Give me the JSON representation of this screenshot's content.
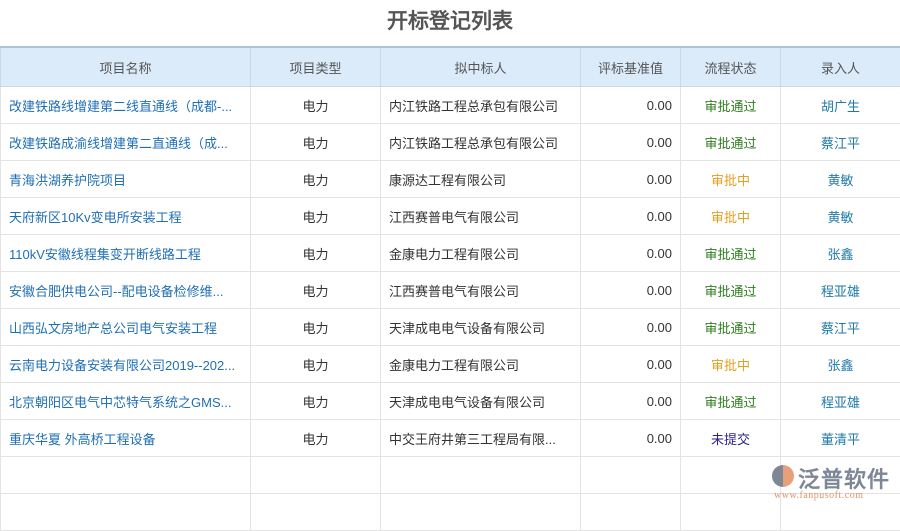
{
  "title": "开标登记列表",
  "columns": [
    "项目名称",
    "项目类型",
    "拟中标人",
    "评标基准值",
    "流程状态",
    "录入人"
  ],
  "rows": [
    {
      "name": "改建铁路线增建第二线直通线（成都-...",
      "type": "电力",
      "bidder": "内江铁路工程总承包有限公司",
      "value": "0.00",
      "status": "审批通过",
      "status_kind": "ok",
      "user": "胡广生"
    },
    {
      "name": "改建铁路成渝线增建第二直通线（成...",
      "type": "电力",
      "bidder": "内江铁路工程总承包有限公司",
      "value": "0.00",
      "status": "审批通过",
      "status_kind": "ok",
      "user": "蔡江平"
    },
    {
      "name": "青海洪湖养护院项目",
      "type": "电力",
      "bidder": "康源达工程有限公司",
      "value": "0.00",
      "status": "审批中",
      "status_kind": "wait",
      "user": "黄敏"
    },
    {
      "name": "天府新区10Kv变电所安装工程",
      "type": "电力",
      "bidder": "江西赛普电气有限公司",
      "value": "0.00",
      "status": "审批中",
      "status_kind": "wait",
      "user": "黄敏"
    },
    {
      "name": "110kV安徽线程集变开断线路工程",
      "type": "电力",
      "bidder": "金康电力工程有限公司",
      "value": "0.00",
      "status": "审批通过",
      "status_kind": "ok",
      "user": "张鑫"
    },
    {
      "name": "安徽合肥供电公司--配电设备检修维...",
      "type": "电力",
      "bidder": "江西赛普电气有限公司",
      "value": "0.00",
      "status": "审批通过",
      "status_kind": "ok",
      "user": "程亚雄"
    },
    {
      "name": "山西弘文房地产总公司电气安装工程",
      "type": "电力",
      "bidder": "天津成电电气设备有限公司",
      "value": "0.00",
      "status": "审批通过",
      "status_kind": "ok",
      "user": "蔡江平"
    },
    {
      "name": "云南电力设备安装有限公司2019--202...",
      "type": "电力",
      "bidder": "金康电力工程有限公司",
      "value": "0.00",
      "status": "审批中",
      "status_kind": "wait",
      "user": "张鑫"
    },
    {
      "name": "北京朝阳区电气中芯特气系统之GMS...",
      "type": "电力",
      "bidder": "天津成电电气设备有限公司",
      "value": "0.00",
      "status": "审批通过",
      "status_kind": "ok",
      "user": "程亚雄"
    },
    {
      "name": "重庆华夏 外高桥工程设备",
      "type": "电力",
      "bidder": "中交王府井第三工程局有限...",
      "value": "0.00",
      "status": "未提交",
      "status_kind": "none",
      "user": "董清平"
    }
  ],
  "logo": {
    "text": "泛普软件",
    "url": "www.fanpusoft.com"
  },
  "colors": {
    "header_bg": "#dcebfa",
    "link": "#1f6fb5",
    "approved": "#2e7d1e",
    "pending": "#e0a020",
    "not_submitted": "#2a1f8a"
  }
}
